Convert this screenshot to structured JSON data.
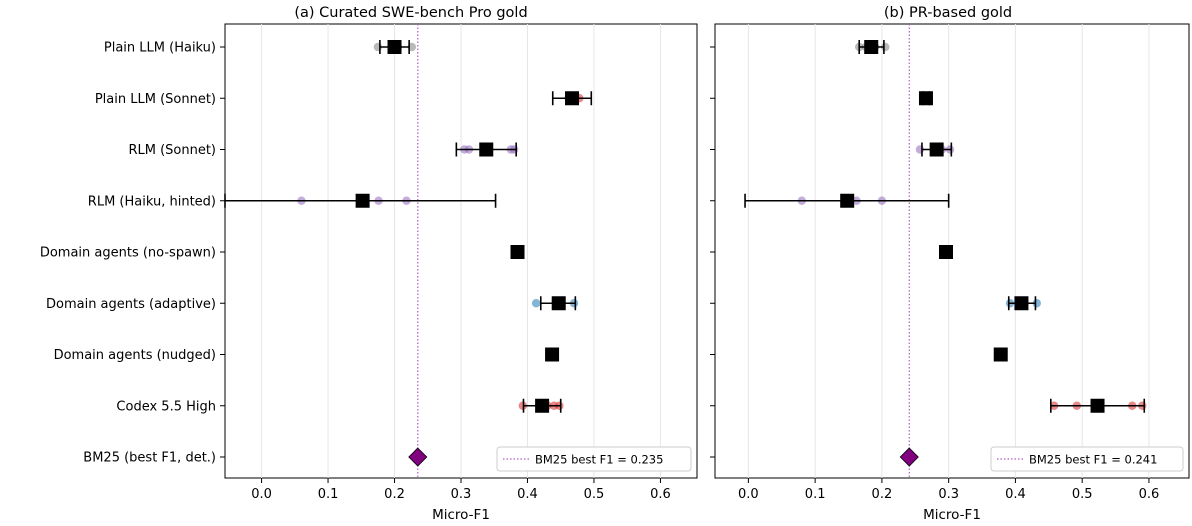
{
  "chart_data": [
    {
      "type": "scatter",
      "title": "(a) Curated SWE-bench Pro gold",
      "xlabel": "Micro-F1",
      "ylabel": "",
      "xlim": [
        -0.055,
        0.655
      ],
      "xticks": [
        0.0,
        0.1,
        0.2,
        0.3,
        0.4,
        0.5,
        0.6
      ],
      "xtick_labels": [
        "0.0",
        "0.1",
        "0.2",
        "0.3",
        "0.4",
        "0.5",
        "0.6"
      ],
      "grid": "vertical",
      "categories": [
        "Plain LLM (Haiku)",
        "Plain LLM (Sonnet)",
        "RLM (Sonnet)",
        "RLM (Haiku, hinted)",
        "Domain agents (no-spawn)",
        "Domain agents (adaptive)",
        "Domain agents (nudged)",
        "Codex 5.5 High",
        "BM25 (best F1, det.)"
      ],
      "series": [
        {
          "label": "Plain LLM (Haiku)",
          "color": "#7f7f7f",
          "runs": [
            0.175,
            0.198,
            0.205,
            0.226
          ],
          "mean": 0.2,
          "err_low": 0.178,
          "err_high": 0.222
        },
        {
          "label": "Plain LLM (Sonnet)",
          "color": "#d62728",
          "runs": [
            0.462,
            0.47,
            0.478
          ],
          "mean": 0.467,
          "err_low": 0.438,
          "err_high": 0.496
        },
        {
          "label": "RLM (Sonnet)",
          "color": "#9467bd",
          "runs": [
            0.305,
            0.312,
            0.375,
            0.38
          ],
          "mean": 0.338,
          "err_low": 0.293,
          "err_high": 0.383
        },
        {
          "label": "RLM (Haiku, hinted)",
          "color": "#9467bd",
          "runs": [
            0.06,
            0.176,
            0.218
          ],
          "mean": 0.152,
          "err_low": -0.055,
          "err_high": 0.352
        },
        {
          "label": "Domain agents (no-spawn)",
          "color": "#1f77b4",
          "runs": [],
          "mean": 0.385,
          "err_low": null,
          "err_high": null
        },
        {
          "label": "Domain agents (adaptive)",
          "color": "#1f77b4",
          "runs": [
            0.413,
            0.47
          ],
          "mean": 0.447,
          "err_low": 0.42,
          "err_high": 0.472
        },
        {
          "label": "Domain agents (nudged)",
          "color": "#1f77b4",
          "runs": [],
          "mean": 0.437,
          "err_low": null,
          "err_high": null
        },
        {
          "label": "Codex 5.5 High",
          "color": "#d62728",
          "runs": [
            0.393,
            0.43,
            0.44,
            0.448
          ],
          "mean": 0.422,
          "err_low": 0.394,
          "err_high": 0.45
        },
        {
          "label": "BM25 (best F1, det.)",
          "color": "#800080",
          "marker": "diamond",
          "runs": [],
          "mean": 0.235,
          "err_low": null,
          "err_high": null
        }
      ],
      "reference_line": {
        "x": 0.235,
        "label": "BM25 best F1 = 0.235",
        "color": "#b05cc6",
        "style": "dotted"
      },
      "legend": "bottom-right"
    },
    {
      "type": "scatter",
      "title": "(b) PR-based gold",
      "xlabel": "Micro-F1",
      "ylabel": "",
      "xlim": [
        -0.05,
        0.66
      ],
      "xticks": [
        0.0,
        0.1,
        0.2,
        0.3,
        0.4,
        0.5,
        0.6
      ],
      "xtick_labels": [
        "0.0",
        "0.1",
        "0.2",
        "0.3",
        "0.4",
        "0.5",
        "0.6"
      ],
      "grid": "vertical",
      "categories": [
        "Plain LLM (Haiku)",
        "Plain LLM (Sonnet)",
        "RLM (Sonnet)",
        "RLM (Haiku, hinted)",
        "Domain agents (no-spawn)",
        "Domain agents (adaptive)",
        "Domain agents (nudged)",
        "Codex 5.5 High",
        "BM25 (best F1, det.)"
      ],
      "series": [
        {
          "label": "Plain LLM (Haiku)",
          "color": "#7f7f7f",
          "runs": [
            0.166,
            0.176,
            0.19,
            0.205
          ],
          "mean": 0.184,
          "err_low": 0.166,
          "err_high": 0.203
        },
        {
          "label": "Plain LLM (Sonnet)",
          "color": "#d62728",
          "runs": [
            0.264,
            0.268
          ],
          "mean": 0.266,
          "err_low": 0.262,
          "err_high": 0.271
        },
        {
          "label": "RLM (Sonnet)",
          "color": "#9467bd",
          "runs": [
            0.257,
            0.29,
            0.302
          ],
          "mean": 0.282,
          "err_low": 0.26,
          "err_high": 0.304
        },
        {
          "label": "RLM (Haiku, hinted)",
          "color": "#9467bd",
          "runs": [
            0.08,
            0.162,
            0.2
          ],
          "mean": 0.148,
          "err_low": -0.005,
          "err_high": 0.3
        },
        {
          "label": "Domain agents (no-spawn)",
          "color": "#1f77b4",
          "runs": [],
          "mean": 0.296,
          "err_low": null,
          "err_high": null
        },
        {
          "label": "Domain agents (adaptive)",
          "color": "#1f77b4",
          "runs": [
            0.392,
            0.432
          ],
          "mean": 0.409,
          "err_low": 0.39,
          "err_high": 0.43
        },
        {
          "label": "Domain agents (nudged)",
          "color": "#1f77b4",
          "runs": [],
          "mean": 0.378,
          "err_low": null,
          "err_high": null
        },
        {
          "label": "Codex 5.5 High",
          "color": "#d62728",
          "runs": [
            0.458,
            0.492,
            0.575,
            0.59
          ],
          "mean": 0.523,
          "err_low": 0.453,
          "err_high": 0.593
        },
        {
          "label": "BM25 (best F1, det.)",
          "color": "#800080",
          "marker": "diamond",
          "runs": [],
          "mean": 0.241,
          "err_low": null,
          "err_high": null
        }
      ],
      "reference_line": {
        "x": 0.241,
        "label": "BM25 best F1 = 0.241",
        "color": "#b05cc6",
        "style": "dotted"
      },
      "legend": "bottom-right"
    }
  ]
}
